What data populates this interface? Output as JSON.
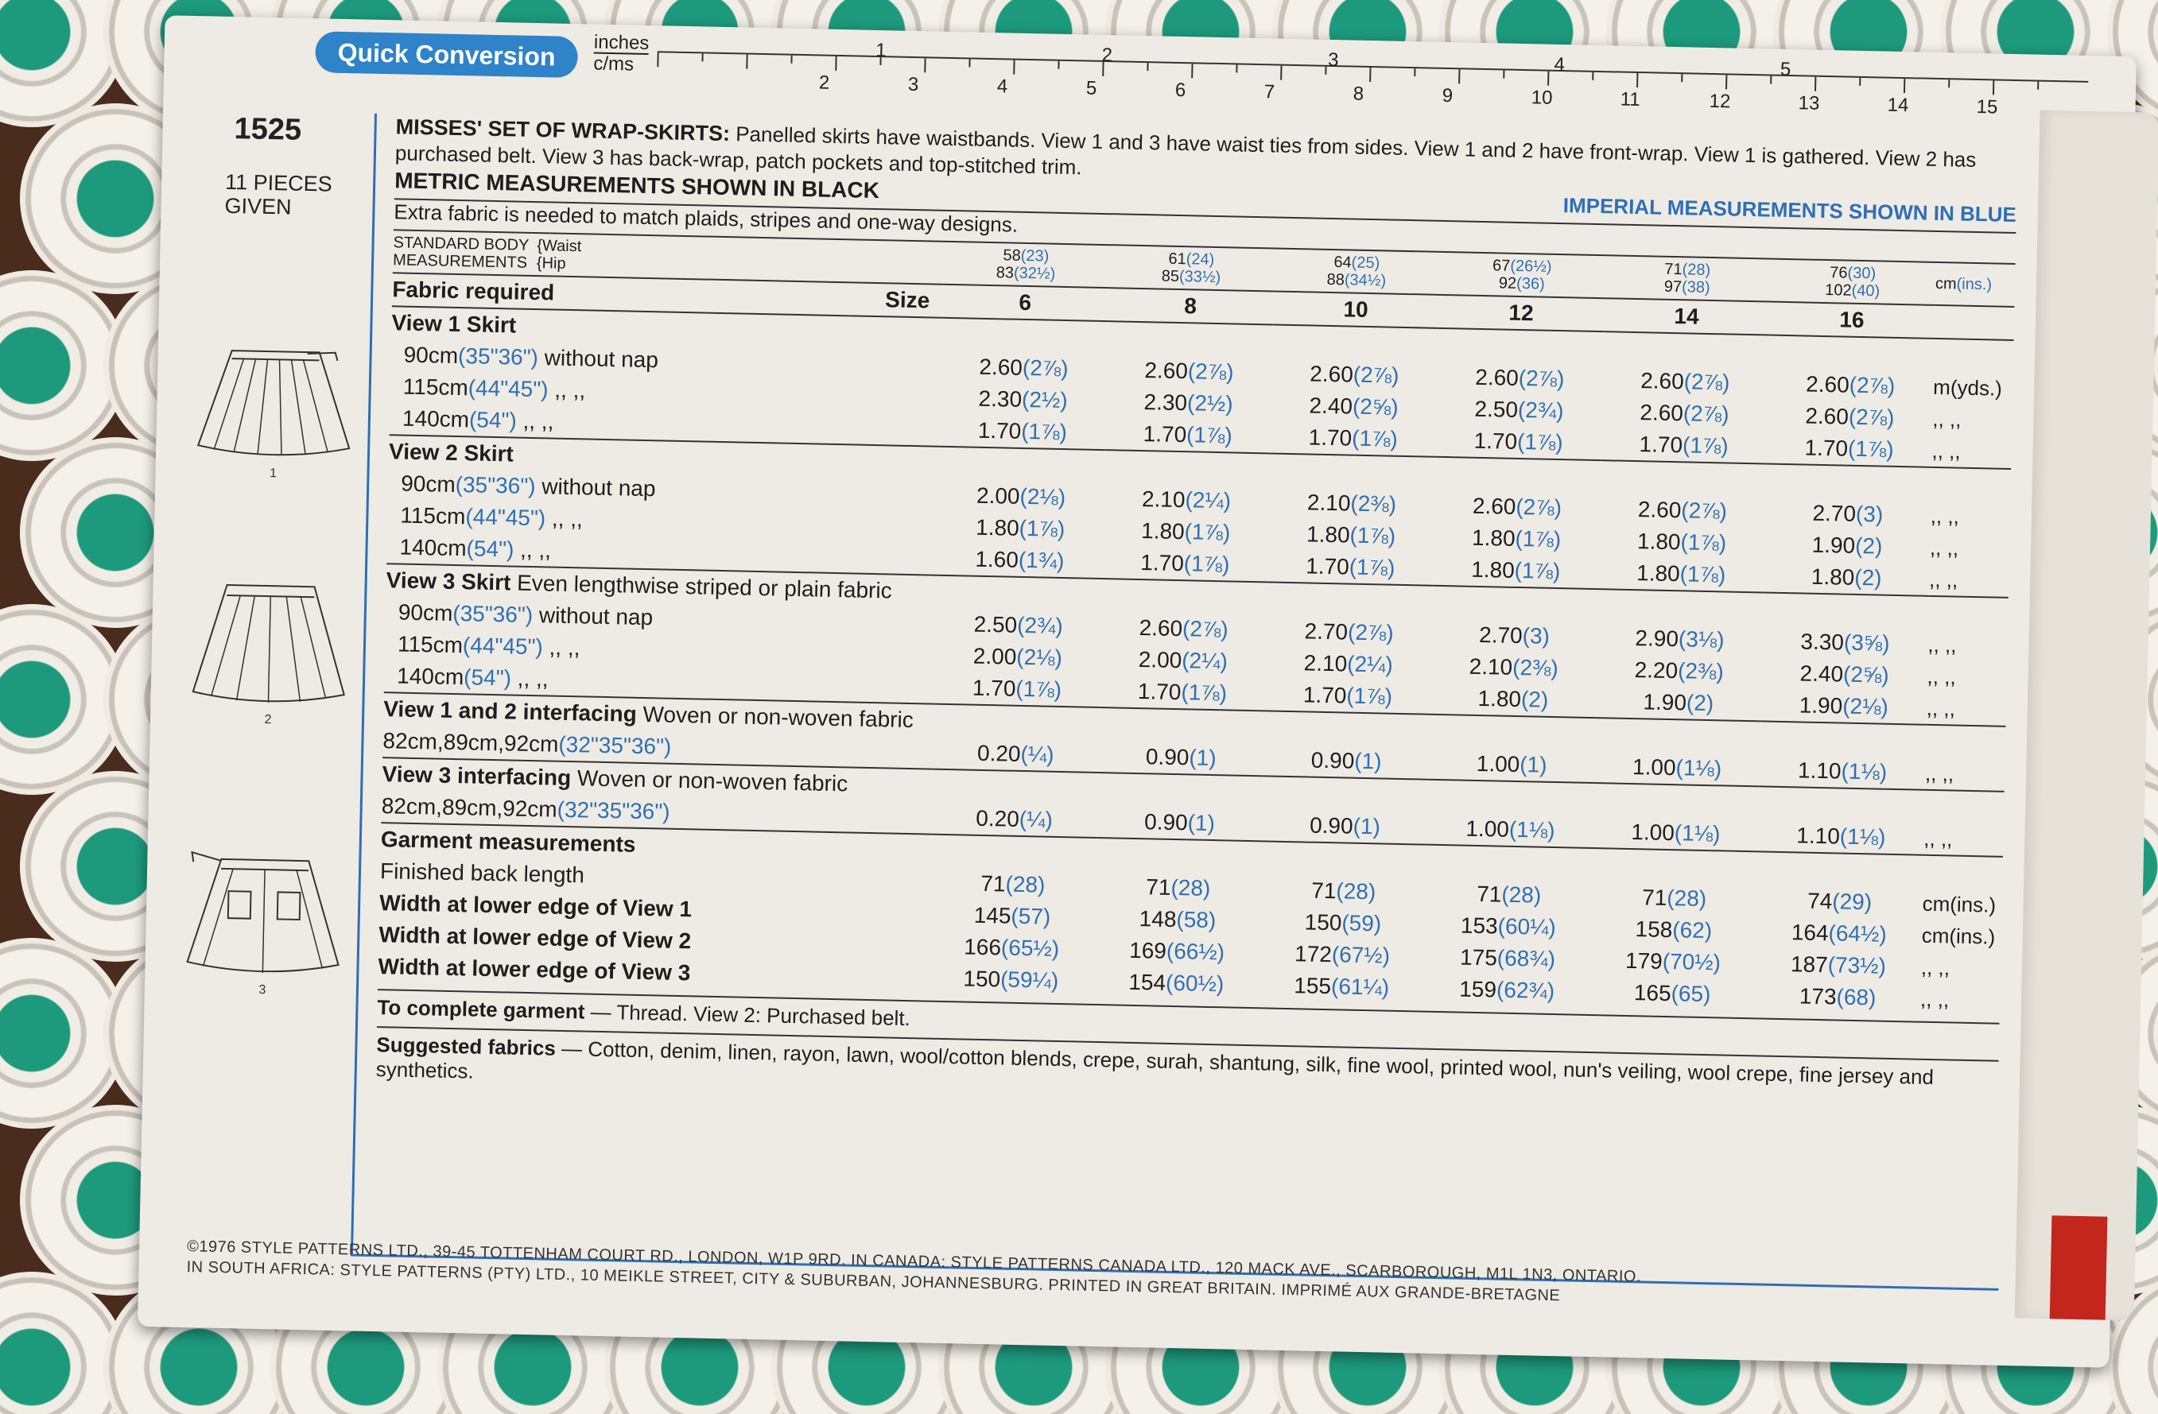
{
  "ruler": {
    "label": "Quick Conversion",
    "unit_top": "inches",
    "unit_bottom": "c/ms",
    "inch_marks": [
      "1",
      "2",
      "3",
      "4",
      "5"
    ],
    "cm_marks": [
      "2",
      "3",
      "4",
      "5",
      "6",
      "7",
      "8",
      "9",
      "10",
      "11",
      "12",
      "13",
      "14",
      "15"
    ]
  },
  "pattern": {
    "number": "1525",
    "pieces_line1": "11 PIECES",
    "pieces_line2": "GIVEN"
  },
  "sketch_labels": [
    "1",
    "2",
    "3"
  ],
  "intro": {
    "title": "MISSES' SET OF WRAP-SKIRTS:",
    "text": "Panelled skirts have waistbands. View 1 and 3 have waist ties from sides. View 1 and 2 have front-wrap. View 1 is gathered. View 2 has purchased belt. View 3 has back-wrap, patch pockets and top-stitched trim.",
    "metric_note": "METRIC MEASUREMENTS SHOWN IN BLACK",
    "imperial_note": "IMPERIAL MEASUREMENTS SHOWN IN BLUE",
    "extra": "Extra fabric is needed to match plaids, stripes and one-way designs."
  },
  "standard": {
    "label1": "STANDARD BODY",
    "label2": "MEASUREMENTS",
    "waist": "{Waist",
    "hip": "{Hip",
    "cols": [
      {
        "w": "58",
        "wi": "(23)",
        "h": "83",
        "hi": "(32½)"
      },
      {
        "w": "61",
        "wi": "(24)",
        "h": "85",
        "hi": "(33½)"
      },
      {
        "w": "64",
        "wi": "(25)",
        "h": "88",
        "hi": "(34½)"
      },
      {
        "w": "67",
        "wi": "(26½)",
        "h": "92",
        "hi": "(36)"
      },
      {
        "w": "71",
        "wi": "(28)",
        "h": "97",
        "hi": "(38)"
      },
      {
        "w": "76",
        "wi": "(30)",
        "h": "102",
        "hi": "(40)"
      }
    ],
    "unit": "cm",
    "unit_imp": "(ins.)"
  },
  "fabric_header": {
    "label": "Fabric required",
    "size": "Size",
    "sizes": [
      "6",
      "8",
      "10",
      "12",
      "14",
      "16"
    ]
  },
  "view1": {
    "title": "View 1  Skirt",
    "rows": [
      {
        "label": "90cm",
        "imp": "(35\"36\")",
        "note": "without nap",
        "vals": [
          [
            "2.60",
            "(2⅞)"
          ],
          [
            "2.60",
            "(2⅞)"
          ],
          [
            "2.60",
            "(2⅞)"
          ],
          [
            "2.60",
            "(2⅞)"
          ],
          [
            "2.60",
            "(2⅞)"
          ],
          [
            "2.60",
            "(2⅞)"
          ]
        ],
        "unit": "m(yds.)"
      },
      {
        "label": "115cm",
        "imp": "(44\"45\")",
        "note": ",,      ,,",
        "vals": [
          [
            "2.30",
            "(2½)"
          ],
          [
            "2.30",
            "(2½)"
          ],
          [
            "2.40",
            "(2⅝)"
          ],
          [
            "2.50",
            "(2¾)"
          ],
          [
            "2.60",
            "(2⅞)"
          ],
          [
            "2.60",
            "(2⅞)"
          ]
        ],
        "unit": ",,   ,,"
      },
      {
        "label": "140cm",
        "imp": "(54\")",
        "note": ",,      ,,",
        "vals": [
          [
            "1.70",
            "(1⅞)"
          ],
          [
            "1.70",
            "(1⅞)"
          ],
          [
            "1.70",
            "(1⅞)"
          ],
          [
            "1.70",
            "(1⅞)"
          ],
          [
            "1.70",
            "(1⅞)"
          ],
          [
            "1.70",
            "(1⅞)"
          ]
        ],
        "unit": ",,   ,,"
      }
    ]
  },
  "view2": {
    "title": "View 2  Skirt",
    "rows": [
      {
        "label": "90cm",
        "imp": "(35\"36\")",
        "note": "without nap",
        "vals": [
          [
            "2.00",
            "(2⅛)"
          ],
          [
            "2.10",
            "(2¼)"
          ],
          [
            "2.10",
            "(2⅜)"
          ],
          [
            "2.60",
            "(2⅞)"
          ],
          [
            "2.60",
            "(2⅞)"
          ],
          [
            "2.70",
            "(3)"
          ]
        ],
        "unit": ",,   ,,"
      },
      {
        "label": "115cm",
        "imp": "(44\"45\")",
        "note": ",,      ,,",
        "vals": [
          [
            "1.80",
            "(1⅞)"
          ],
          [
            "1.80",
            "(1⅞)"
          ],
          [
            "1.80",
            "(1⅞)"
          ],
          [
            "1.80",
            "(1⅞)"
          ],
          [
            "1.80",
            "(1⅞)"
          ],
          [
            "1.90",
            "(2)"
          ]
        ],
        "unit": ",,   ,,"
      },
      {
        "label": "140cm",
        "imp": "(54\")",
        "note": ",,      ,,",
        "vals": [
          [
            "1.60",
            "(1¾)"
          ],
          [
            "1.70",
            "(1⅞)"
          ],
          [
            "1.70",
            "(1⅞)"
          ],
          [
            "1.80",
            "(1⅞)"
          ],
          [
            "1.80",
            "(1⅞)"
          ],
          [
            "1.80",
            "(2)"
          ]
        ],
        "unit": ",,   ,,"
      }
    ]
  },
  "view3": {
    "title": "View 3  Skirt",
    "subtitle": "Even lengthwise striped or plain fabric",
    "rows": [
      {
        "label": "90cm",
        "imp": "(35\"36\")",
        "note": "without nap",
        "vals": [
          [
            "2.50",
            "(2¾)"
          ],
          [
            "2.60",
            "(2⅞)"
          ],
          [
            "2.70",
            "(2⅞)"
          ],
          [
            "2.70",
            "(3)"
          ],
          [
            "2.90",
            "(3⅛)"
          ],
          [
            "3.30",
            "(3⅝)"
          ]
        ],
        "unit": ",,   ,,"
      },
      {
        "label": "115cm",
        "imp": "(44\"45\")",
        "note": ",,      ,,",
        "vals": [
          [
            "2.00",
            "(2⅛)"
          ],
          [
            "2.00",
            "(2¼)"
          ],
          [
            "2.10",
            "(2¼)"
          ],
          [
            "2.10",
            "(2⅜)"
          ],
          [
            "2.20",
            "(2⅜)"
          ],
          [
            "2.40",
            "(2⅝)"
          ]
        ],
        "unit": ",,   ,,"
      },
      {
        "label": "140cm",
        "imp": "(54\")",
        "note": ",,      ,,",
        "vals": [
          [
            "1.70",
            "(1⅞)"
          ],
          [
            "1.70",
            "(1⅞)"
          ],
          [
            "1.70",
            "(1⅞)"
          ],
          [
            "1.80",
            "(2)"
          ],
          [
            "1.90",
            "(2)"
          ],
          [
            "1.90",
            "(2⅛)"
          ]
        ],
        "unit": ",,   ,,"
      }
    ]
  },
  "interfacing12": {
    "title": "View 1 and 2 interfacing",
    "subtitle": "Woven or non-woven fabric",
    "label": "82cm,89cm,92cm",
    "imp": "(32\"35\"36\")",
    "vals": [
      [
        "0.20",
        "(¼)"
      ],
      [
        "0.90",
        "(1)"
      ],
      [
        "0.90",
        "(1)"
      ],
      [
        "1.00",
        "(1)"
      ],
      [
        "1.00",
        "(1⅛)"
      ],
      [
        "1.10",
        "(1⅛)"
      ]
    ],
    "unit": ",,   ,,"
  },
  "interfacing3": {
    "title": "View 3 interfacing",
    "subtitle": "Woven or non-woven fabric",
    "label": "82cm,89cm,92cm",
    "imp": "(32\"35\"36\")",
    "vals": [
      [
        "0.20",
        "(¼)"
      ],
      [
        "0.90",
        "(1)"
      ],
      [
        "0.90",
        "(1)"
      ],
      [
        "1.00",
        "(1⅛)"
      ],
      [
        "1.00",
        "(1⅛)"
      ],
      [
        "1.10",
        "(1⅛)"
      ]
    ],
    "unit": ",,   ,,"
  },
  "garment": {
    "title": "Garment measurements",
    "rows": [
      {
        "label": "Finished back length",
        "bold": false,
        "vals": [
          [
            "71",
            "(28)"
          ],
          [
            "71",
            "(28)"
          ],
          [
            "71",
            "(28)"
          ],
          [
            "71",
            "(28)"
          ],
          [
            "71",
            "(28)"
          ],
          [
            "74",
            "(29)"
          ]
        ],
        "unit": "cm(ins.)"
      },
      {
        "label": "Width at lower edge of View 1",
        "bold": true,
        "vals": [
          [
            "145",
            "(57)"
          ],
          [
            "148",
            "(58)"
          ],
          [
            "150",
            "(59)"
          ],
          [
            "153",
            "(60¼)"
          ],
          [
            "158",
            "(62)"
          ],
          [
            "164",
            "(64½)"
          ]
        ],
        "unit": "cm(ins.)"
      },
      {
        "label": "Width at lower edge of View 2",
        "bold": true,
        "vals": [
          [
            "166",
            "(65½)"
          ],
          [
            "169",
            "(66½)"
          ],
          [
            "172",
            "(67½)"
          ],
          [
            "175",
            "(68¾)"
          ],
          [
            "179",
            "(70½)"
          ],
          [
            "187",
            "(73½)"
          ]
        ],
        "unit": ",,   ,,"
      },
      {
        "label": "Width at lower edge of View 3",
        "bold": true,
        "vals": [
          [
            "150",
            "(59¼)"
          ],
          [
            "154",
            "(60½)"
          ],
          [
            "155",
            "(61¼)"
          ],
          [
            "159",
            "(62¾)"
          ],
          [
            "165",
            "(65)"
          ],
          [
            "173",
            "(68)"
          ]
        ],
        "unit": ",,   ,,"
      }
    ]
  },
  "complete": {
    "label": "To complete garment",
    "text": "— Thread. View 2: Purchased belt."
  },
  "suggested": {
    "label": "Suggested fabrics",
    "text": "— Cotton, denim, linen, rayon, lawn, wool/cotton blends, crepe, surah, shantung, silk, fine wool, printed wool, nun's veiling, wool crepe, fine jersey and synthetics."
  },
  "copyright": {
    "line1": "©1976 STYLE PATTERNS LTD., 39-45 TOTTENHAM COURT RD., LONDON, W1P 9RD.  IN CANADA: STYLE PATTERNS CANADA LTD., 120 MACK AVE., SCARBOROUGH, M1L 1N3, ONTARIO.",
    "line2": "IN SOUTH AFRICA: STYLE PATTERNS (PTY) LTD., 10 MEIKLE STREET, CITY & SUBURBAN, JOHANNESBURG. PRINTED IN GREAT BRITAIN. IMPRIMÉ AUX GRANDE-BRETAGNE"
  },
  "colors": {
    "imperial_blue": "#2f6fb5",
    "ruler_blue": "#2f83c8",
    "paper": "#eeebe4",
    "fabric_brown": "#4a2c1c",
    "fabric_teal": "#1d9a7c"
  }
}
